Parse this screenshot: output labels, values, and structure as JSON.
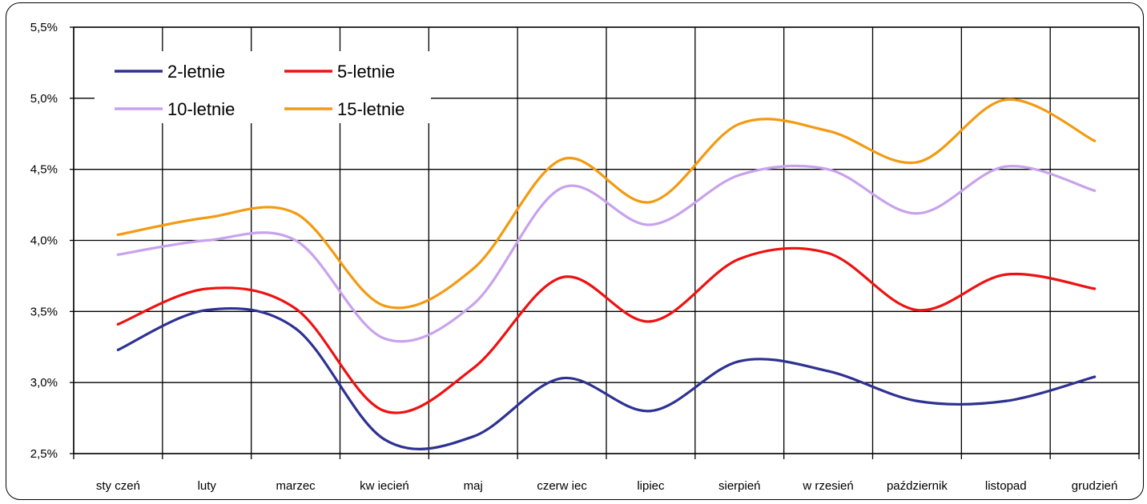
{
  "chart_data": {
    "type": "line",
    "title": "",
    "xlabel": "",
    "ylabel": "",
    "categories": [
      "sty czeń",
      "luty",
      "marzec",
      "kw iecień",
      "maj",
      "czerw iec",
      "lipiec",
      "sierpień",
      "w rzesień",
      "październik",
      "listopad",
      "grudzień"
    ],
    "y_ticks": [
      "2,5%",
      "3,0%",
      "3,5%",
      "4,0%",
      "4,5%",
      "5,0%",
      "5,5%"
    ],
    "y_tick_values": [
      2.5,
      3.0,
      3.5,
      4.0,
      4.5,
      5.0,
      5.5
    ],
    "ylim": [
      2.5,
      5.5
    ],
    "grid": true,
    "legend_position": "top-left",
    "series": [
      {
        "name": "2-letnie",
        "color": "#2e3191",
        "values": [
          3.23,
          3.51,
          3.38,
          2.6,
          2.62,
          3.03,
          2.8,
          3.15,
          3.08,
          2.87,
          2.87,
          3.04
        ]
      },
      {
        "name": "5-letnie",
        "color": "#ee1111",
        "values": [
          3.41,
          3.66,
          3.52,
          2.8,
          3.1,
          3.74,
          3.43,
          3.87,
          3.91,
          3.51,
          3.76,
          3.66
        ]
      },
      {
        "name": "10-letnie",
        "color": "#c8a2ec",
        "values": [
          3.9,
          4.0,
          4.0,
          3.31,
          3.55,
          4.37,
          4.11,
          4.46,
          4.5,
          4.19,
          4.52,
          4.35
        ]
      },
      {
        "name": "15-letnie",
        "color": "#f39a11",
        "values": [
          4.04,
          4.16,
          4.19,
          3.54,
          3.8,
          4.57,
          4.27,
          4.82,
          4.77,
          4.55,
          4.99,
          4.7
        ]
      }
    ]
  }
}
